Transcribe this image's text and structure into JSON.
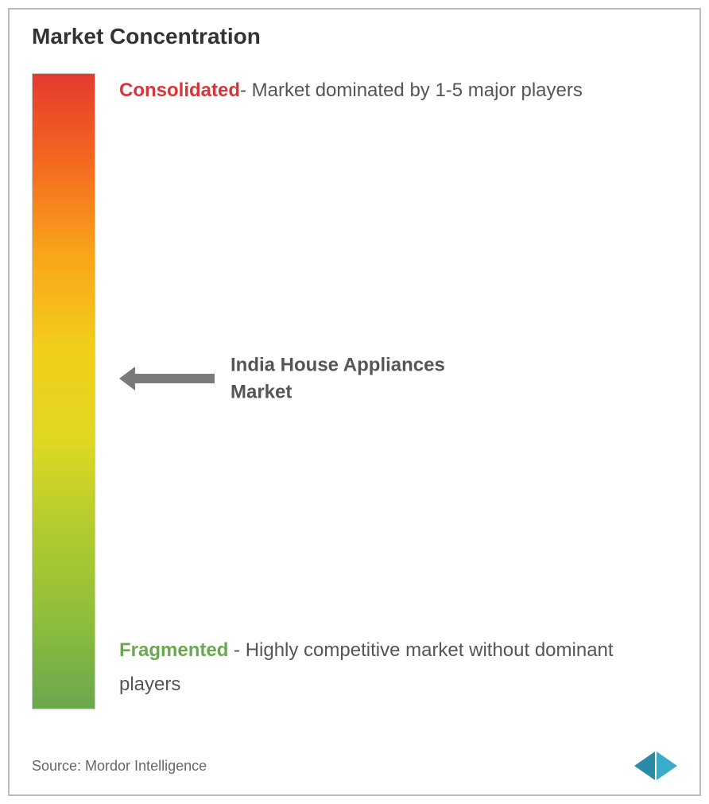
{
  "chart": {
    "title": "Market Concentration",
    "gradient_bar": {
      "colors": [
        "#e43a2e",
        "#f46a1f",
        "#f9a51a",
        "#f2cd1a",
        "#e0d821",
        "#b3cc2f",
        "#8fbe3a",
        "#6aa84f"
      ],
      "border_color": "#cccccc"
    },
    "top_label": {
      "highlight": "Consolidated",
      "highlight_color": "#d63638",
      "text": "- Market dominated by 1-5 major players"
    },
    "middle_marker": {
      "position_pct": 48,
      "arrow_color": "#7a7a7a",
      "label": "India House Appliances Market"
    },
    "bottom_label": {
      "highlight": "Fragmented",
      "highlight_color": "#6aa84f",
      "text": " - Highly competitive market without dominant players"
    }
  },
  "footer": {
    "source": "Source: Mordor Intelligence",
    "logo_colors": {
      "left": "#2a8aa8",
      "right": "#3aacc9"
    }
  },
  "styling": {
    "background_color": "#ffffff",
    "title_fontsize": 28,
    "title_color": "#333333",
    "body_fontsize": 24,
    "body_color": "#555555",
    "source_fontsize": 18,
    "source_color": "#666666",
    "frame_border_color": "#bbbbbb"
  }
}
